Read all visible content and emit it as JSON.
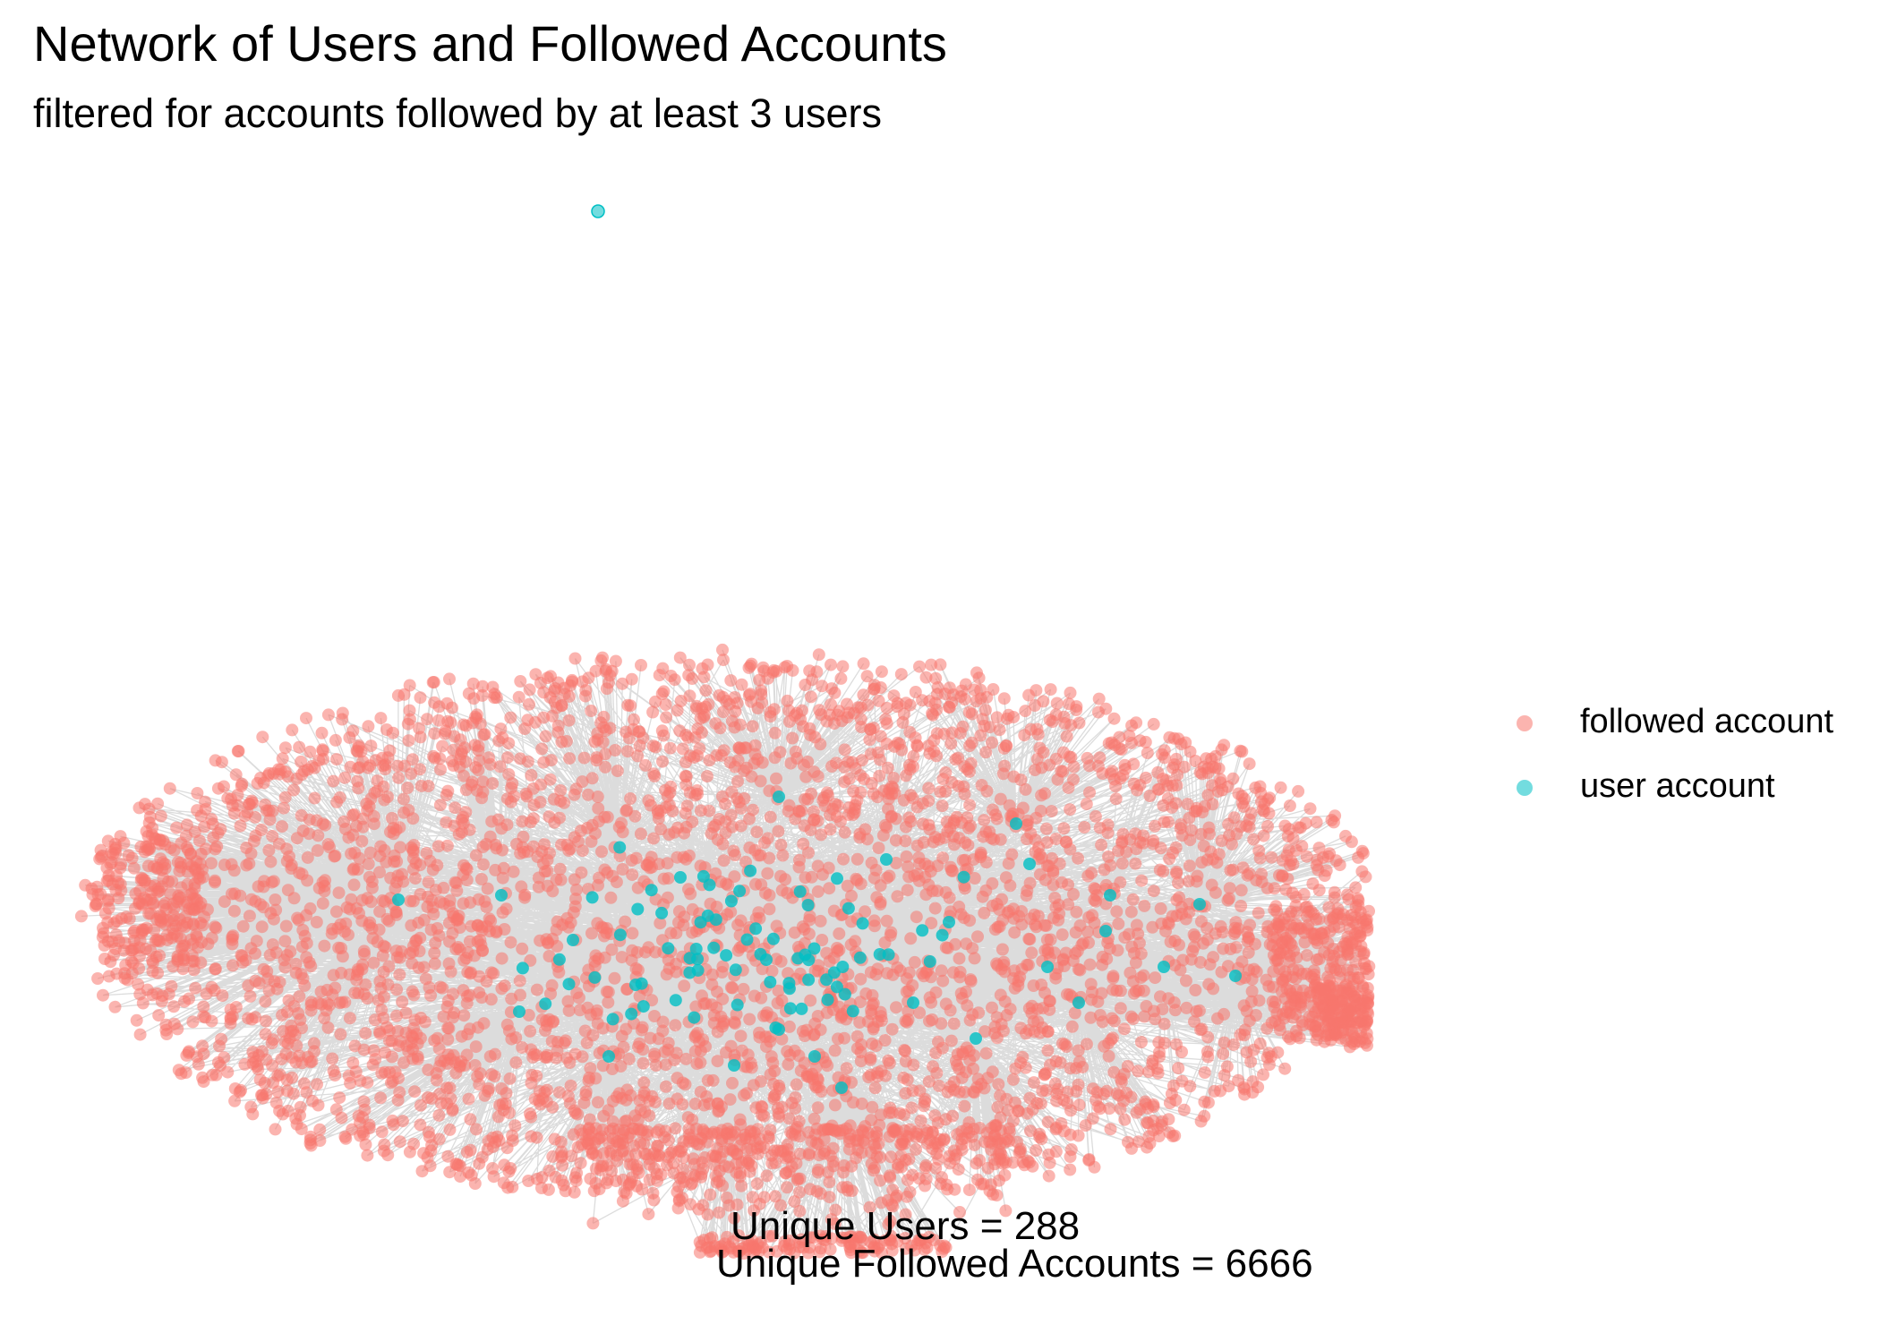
{
  "title": "Network of Users and Followed Accounts",
  "subtitle": "filtered for accounts followed by at least 3 users",
  "colors": {
    "followed_account": "#F8766D",
    "user_account": "#00BFC4",
    "edge": "#808080",
    "background": "#FFFFFF"
  },
  "legend": {
    "items": [
      {
        "label": "followed account",
        "color_key": "followed_account"
      },
      {
        "label": "user account",
        "color_key": "user_account"
      }
    ]
  },
  "stats": {
    "unique_users": "Unique Users =  288",
    "unique_followed": "Unique Followed Accounts =  6666"
  },
  "network": {
    "unique_users": 288,
    "unique_followed_accounts": 6666
  }
}
